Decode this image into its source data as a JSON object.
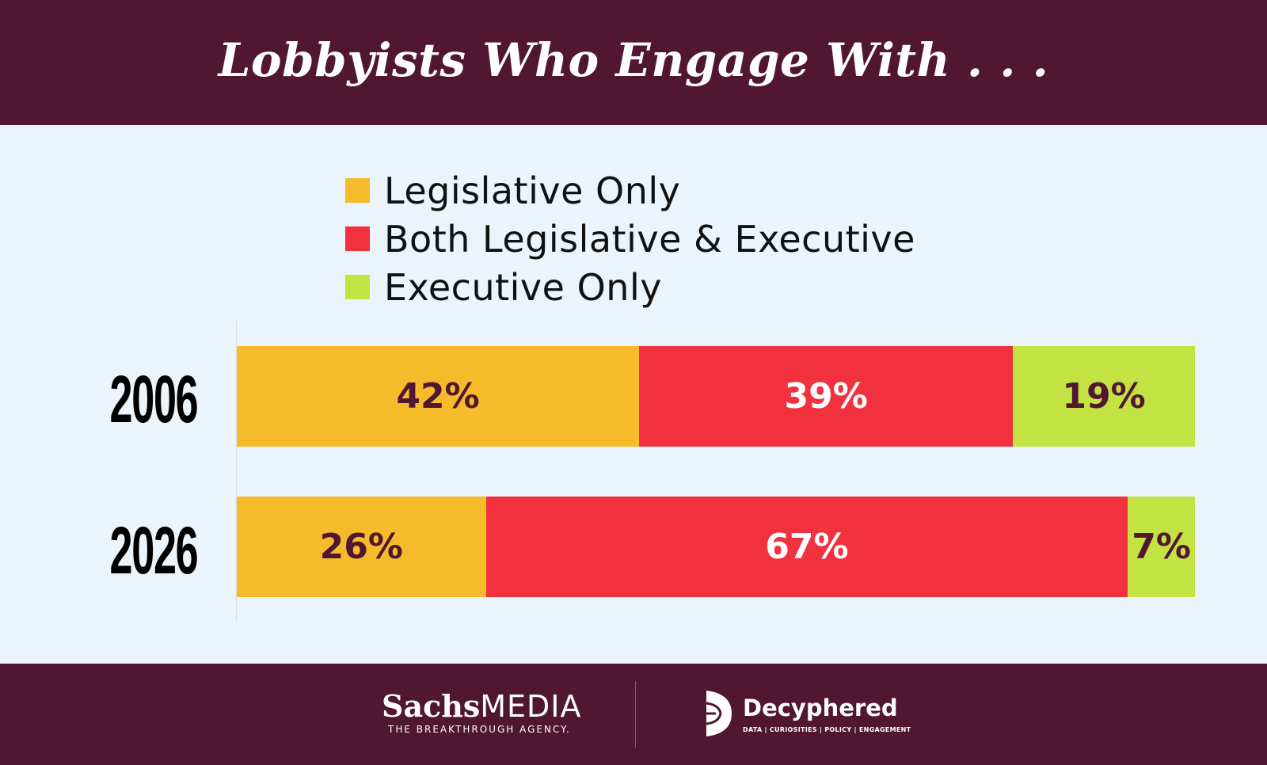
{
  "header": {
    "title": "Lobbyists Who Engage With . . ."
  },
  "colors": {
    "header_bg": "#511730",
    "body_bg": "#ebf4fa",
    "legislative_only": "#f5bb2b",
    "both": "#f2313f",
    "executive_only": "#c3e342",
    "label_dark": "#511730",
    "label_light": "#ffffff"
  },
  "chart_data": {
    "type": "bar",
    "orientation": "horizontal",
    "stacked": true,
    "normalized_to_percent": true,
    "categories": [
      "2006",
      "2026"
    ],
    "series": [
      {
        "name": "Legislative Only",
        "color": "#f5bb2b",
        "values": [
          42,
          26
        ],
        "labels": [
          "42%",
          "26%"
        ],
        "label_color": "#511730"
      },
      {
        "name": "Both Legislative & Executive",
        "color": "#f2313f",
        "values": [
          39,
          67
        ],
        "labels": [
          "39%",
          "67%"
        ],
        "label_color": "#ffffff"
      },
      {
        "name": "Executive Only",
        "color": "#c3e342",
        "values": [
          19,
          7
        ],
        "labels": [
          "19%",
          "7%"
        ],
        "label_color": "#511730"
      }
    ],
    "xlim": [
      0,
      100
    ],
    "grid": false,
    "legend_placement": "top"
  },
  "footer": {
    "sachs_bold": "Sachs",
    "sachs_regular": "MEDIA",
    "sachs_tagline": "THE BREAKTHROUGH AGENCY.",
    "decyphered_name": "Decyphered",
    "decyphered_tagline": "DATA | CURIOSITIES | POLICY | ENGAGEMENT"
  }
}
